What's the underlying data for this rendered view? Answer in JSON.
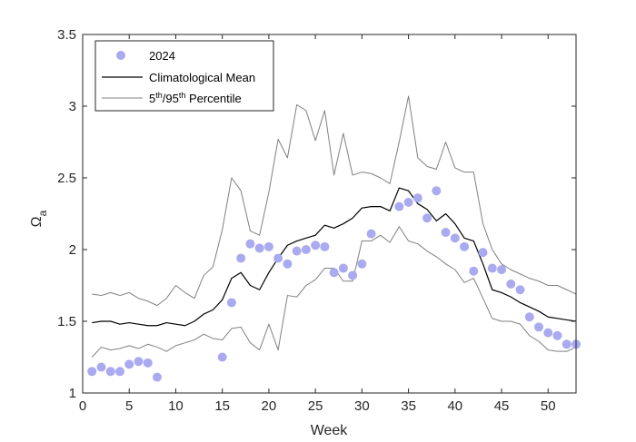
{
  "chart_data": {
    "type": "line",
    "xlabel": "Week",
    "ylabel": "Ωa",
    "ylabel_main": "Ω",
    "ylabel_sub": "a",
    "xlim": [
      0,
      53
    ],
    "ylim": [
      1,
      3.5
    ],
    "xticks": [
      0,
      5,
      10,
      15,
      20,
      25,
      30,
      35,
      40,
      45,
      50
    ],
    "yticks": [
      1,
      1.5,
      2,
      2.5,
      3,
      3.5
    ],
    "grid": false,
    "legend_position": "top-left",
    "legend": {
      "entry1": "2024",
      "entry2": "Climatological Mean",
      "entry3_base1": "5",
      "entry3_sup1": "th",
      "entry3_mid": "/95",
      "entry3_sup2": "th",
      "entry3_tail": " Percentile"
    },
    "colors": {
      "points": "#aaaaf0",
      "mean": "#000000",
      "percentile": "#808080"
    },
    "series": [
      {
        "name": "2024",
        "kind": "scatter",
        "points": [
          [
            1,
            1.15
          ],
          [
            2,
            1.18
          ],
          [
            3,
            1.15
          ],
          [
            4,
            1.15
          ],
          [
            5,
            1.2
          ],
          [
            6,
            1.22
          ],
          [
            7,
            1.21
          ],
          [
            8,
            1.11
          ],
          [
            15,
            1.25
          ],
          [
            16,
            1.63
          ],
          [
            17,
            1.94
          ],
          [
            18,
            2.04
          ],
          [
            19,
            2.01
          ],
          [
            20,
            2.02
          ],
          [
            21,
            1.94
          ],
          [
            22,
            1.9
          ],
          [
            23,
            1.99
          ],
          [
            24,
            2.0
          ],
          [
            25,
            2.03
          ],
          [
            26,
            2.02
          ],
          [
            27,
            1.84
          ],
          [
            28,
            1.87
          ],
          [
            29,
            1.82
          ],
          [
            30,
            1.9
          ],
          [
            31,
            2.11
          ],
          [
            34,
            2.3
          ],
          [
            35,
            2.33
          ],
          [
            36,
            2.36
          ],
          [
            37,
            2.22
          ],
          [
            38,
            2.41
          ],
          [
            39,
            2.12
          ],
          [
            40,
            2.08
          ],
          [
            41,
            2.02
          ],
          [
            42,
            1.85
          ],
          [
            43,
            1.98
          ],
          [
            44,
            1.87
          ],
          [
            45,
            1.86
          ],
          [
            46,
            1.76
          ],
          [
            47,
            1.72
          ],
          [
            48,
            1.53
          ],
          [
            49,
            1.46
          ],
          [
            50,
            1.42
          ],
          [
            51,
            1.4
          ],
          [
            52,
            1.34
          ],
          [
            53,
            1.34
          ]
        ]
      },
      {
        "name": "Climatological Mean",
        "kind": "line",
        "x": [
          1,
          2,
          3,
          4,
          5,
          6,
          7,
          8,
          9,
          10,
          11,
          12,
          13,
          14,
          15,
          16,
          17,
          18,
          19,
          20,
          21,
          22,
          23,
          24,
          25,
          26,
          27,
          28,
          29,
          30,
          31,
          32,
          33,
          34,
          35,
          36,
          37,
          38,
          39,
          40,
          41,
          42,
          43,
          44,
          45,
          46,
          47,
          48,
          49,
          50,
          51,
          52,
          53
        ],
        "y": [
          1.49,
          1.5,
          1.5,
          1.48,
          1.49,
          1.48,
          1.47,
          1.47,
          1.49,
          1.48,
          1.47,
          1.5,
          1.55,
          1.58,
          1.65,
          1.8,
          1.84,
          1.75,
          1.72,
          1.84,
          1.94,
          2.03,
          2.06,
          2.08,
          2.1,
          2.17,
          2.15,
          2.18,
          2.22,
          2.29,
          2.3,
          2.3,
          2.27,
          2.43,
          2.41,
          2.32,
          2.28,
          2.2,
          2.25,
          2.18,
          2.08,
          2.06,
          1.9,
          1.72,
          1.7,
          1.67,
          1.63,
          1.6,
          1.57,
          1.53,
          1.52,
          1.51,
          1.5
        ]
      },
      {
        "name": "95th Percentile",
        "kind": "line",
        "x": [
          1,
          2,
          3,
          4,
          5,
          6,
          7,
          8,
          9,
          10,
          11,
          12,
          13,
          14,
          15,
          16,
          17,
          18,
          19,
          20,
          21,
          22,
          23,
          24,
          25,
          26,
          27,
          28,
          29,
          30,
          31,
          32,
          33,
          34,
          35,
          36,
          37,
          38,
          39,
          40,
          41,
          42,
          43,
          44,
          45,
          46,
          47,
          48,
          49,
          50,
          51,
          52,
          53
        ],
        "y": [
          1.69,
          1.68,
          1.7,
          1.68,
          1.7,
          1.66,
          1.64,
          1.61,
          1.66,
          1.75,
          1.7,
          1.66,
          1.82,
          1.88,
          2.14,
          2.5,
          2.41,
          2.13,
          2.1,
          2.4,
          2.77,
          2.64,
          3.01,
          2.97,
          2.76,
          2.97,
          2.52,
          2.81,
          2.52,
          2.54,
          2.53,
          2.5,
          2.46,
          2.75,
          3.07,
          2.64,
          2.58,
          2.56,
          2.75,
          2.57,
          2.54,
          2.54,
          2.18,
          2.0,
          1.9,
          1.86,
          1.83,
          1.8,
          1.78,
          1.75,
          1.75,
          1.72,
          1.69
        ]
      },
      {
        "name": "5th Percentile",
        "kind": "line",
        "x": [
          1,
          2,
          3,
          4,
          5,
          6,
          7,
          8,
          9,
          10,
          11,
          12,
          13,
          14,
          15,
          16,
          17,
          18,
          19,
          20,
          21,
          22,
          23,
          24,
          25,
          26,
          27,
          28,
          29,
          30,
          31,
          32,
          33,
          34,
          35,
          36,
          37,
          38,
          39,
          40,
          41,
          42,
          43,
          44,
          45,
          46,
          47,
          48,
          49,
          50,
          51,
          52,
          53
        ],
        "y": [
          1.25,
          1.32,
          1.3,
          1.31,
          1.33,
          1.31,
          1.34,
          1.32,
          1.29,
          1.33,
          1.35,
          1.37,
          1.41,
          1.38,
          1.37,
          1.45,
          1.46,
          1.35,
          1.3,
          1.48,
          1.3,
          1.68,
          1.67,
          1.75,
          1.79,
          1.87,
          1.87,
          1.78,
          1.78,
          2.06,
          2.06,
          2.1,
          2.05,
          2.16,
          2.06,
          2.04,
          1.99,
          1.95,
          1.9,
          1.86,
          1.77,
          1.8,
          1.66,
          1.52,
          1.5,
          1.5,
          1.48,
          1.4,
          1.36,
          1.3,
          1.29,
          1.29,
          1.32
        ]
      }
    ]
  }
}
